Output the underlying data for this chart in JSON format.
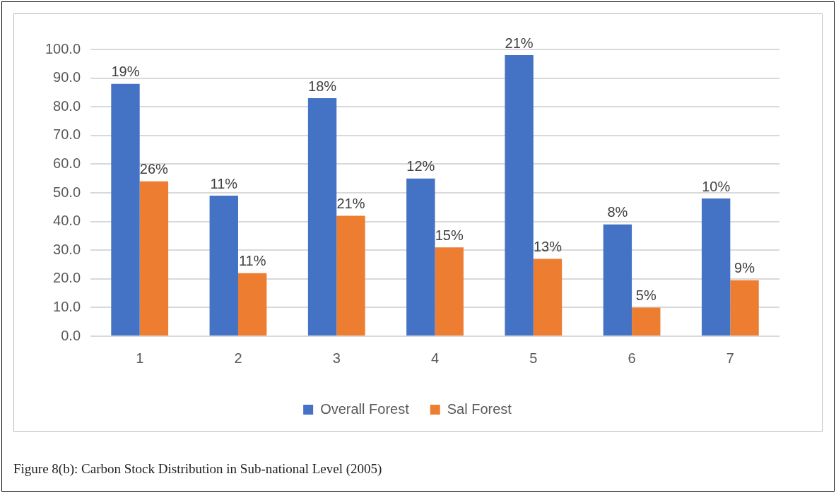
{
  "chart_data": {
    "type": "bar",
    "categories": [
      "1",
      "2",
      "3",
      "4",
      "5",
      "6",
      "7"
    ],
    "series": [
      {
        "name": "Overall Forest",
        "color": "#4472c4",
        "values": [
          88,
          49,
          83,
          55,
          98,
          39,
          48
        ]
      },
      {
        "name": "Sal Forest",
        "color": "#ed7d31",
        "values": [
          54,
          22,
          42,
          31,
          27,
          10,
          19.5
        ]
      }
    ],
    "ylim": [
      0,
      100
    ],
    "yticks": [
      {
        "value": 0,
        "label": "0.0"
      },
      {
        "value": 10,
        "label": "10.0"
      },
      {
        "value": 20,
        "label": "20.0"
      },
      {
        "value": 30,
        "label": "30.0"
      },
      {
        "value": 40,
        "label": "40.0"
      },
      {
        "value": 50,
        "label": "50.0"
      },
      {
        "value": 60,
        "label": "60.0"
      },
      {
        "value": 70,
        "label": "70.0"
      },
      {
        "value": 80,
        "label": "80.0"
      },
      {
        "value": 90,
        "label": "90.0"
      },
      {
        "value": 100,
        "label": "100.0"
      }
    ],
    "grid": "y",
    "legend": "bottom",
    "annotations": [
      {
        "text": "19%",
        "x": "1",
        "y": 88
      },
      {
        "text": "11%",
        "x": "2",
        "y": 49
      },
      {
        "text": "18%",
        "x": "3",
        "y": 83
      },
      {
        "text": "12%",
        "x": "4",
        "y": 55
      },
      {
        "text": "21%",
        "x": "5",
        "y": 98
      },
      {
        "text": "8%",
        "x": "6",
        "y": 39
      },
      {
        "text": "10%",
        "x": "7",
        "y": 48
      },
      {
        "text": "26%",
        "x": "1",
        "y": 54
      },
      {
        "text": "11%",
        "x": "2",
        "y": 22
      },
      {
        "text": "21%",
        "x": "3",
        "y": 42
      },
      {
        "text": "15%",
        "x": "4",
        "y": 31
      },
      {
        "text": "13%",
        "x": "5",
        "y": 27
      },
      {
        "text": "5%",
        "x": "6",
        "y": 10
      },
      {
        "text": "9%",
        "x": "7",
        "y": 19.5
      },
      "Figure 8(b): Carbon Stock Distribution in Sub-national Level (2005)"
    ]
  }
}
